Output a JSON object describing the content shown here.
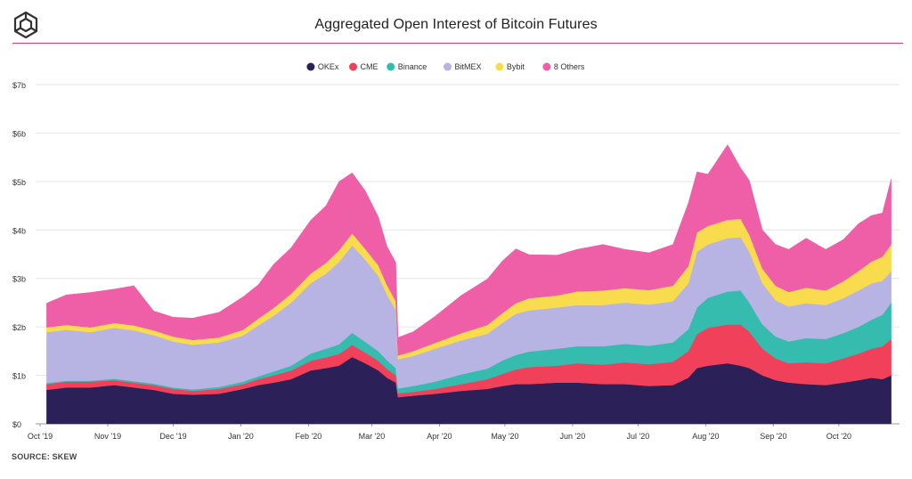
{
  "header": {
    "title": "Aggregated Open Interest of Bitcoin Futures",
    "accent_color": "#e0357f"
  },
  "watermark": "THE BLOCK",
  "footer": {
    "source": "SOURCE: SKEW"
  },
  "chart_data": {
    "type": "area",
    "stacked": true,
    "ylim": [
      0,
      7
    ],
    "y_ticks": [
      0,
      1,
      2,
      3,
      4,
      5,
      6,
      7
    ],
    "y_tick_labels": [
      "$0",
      "$1b",
      "$2b",
      "$3b",
      "$4b",
      "$5b",
      "$6b",
      "$7b"
    ],
    "grid": "horizontal",
    "legend_position": "top-center",
    "x_tick_labels": [
      "Oct '19",
      "Nov '19",
      "Dec '19",
      "Jan '20",
      "Feb '20",
      "Mar '20",
      "Apr '20",
      "May '20",
      "Jun '20",
      "Jul '20",
      "Aug '20",
      "Sep '20",
      "Oct '20"
    ],
    "x_tick_dates": [
      "2019-10-01",
      "2019-11-01",
      "2019-12-01",
      "2020-01-01",
      "2020-02-01",
      "2020-03-01",
      "2020-04-01",
      "2020-05-01",
      "2020-06-01",
      "2020-07-01",
      "2020-08-01",
      "2020-09-01",
      "2020-10-01"
    ],
    "x_dates": [
      "2019-10-04",
      "2019-10-13",
      "2019-10-24",
      "2019-11-04",
      "2019-11-13",
      "2019-11-22",
      "2019-12-01",
      "2019-12-10",
      "2019-12-22",
      "2020-01-02",
      "2020-01-09",
      "2020-01-16",
      "2020-01-24",
      "2020-02-02",
      "2020-02-09",
      "2020-02-15",
      "2020-02-21",
      "2020-02-27",
      "2020-03-04",
      "2020-03-08",
      "2020-03-12",
      "2020-03-13",
      "2020-03-20",
      "2020-03-30",
      "2020-04-11",
      "2020-04-23",
      "2020-04-30",
      "2020-05-06",
      "2020-05-12",
      "2020-05-25",
      "2020-06-03",
      "2020-06-15",
      "2020-06-25",
      "2020-07-06",
      "2020-07-17",
      "2020-07-24",
      "2020-07-28",
      "2020-08-02",
      "2020-08-11",
      "2020-08-17",
      "2020-08-21",
      "2020-08-27",
      "2020-09-02",
      "2020-09-08",
      "2020-09-16",
      "2020-09-25",
      "2020-10-03",
      "2020-10-10",
      "2020-10-16",
      "2020-10-21",
      "2020-10-25"
    ],
    "series": [
      {
        "name": "OKEx",
        "color": "#2b2057",
        "values": [
          0.7,
          0.75,
          0.75,
          0.8,
          0.75,
          0.7,
          0.62,
          0.6,
          0.62,
          0.72,
          0.8,
          0.85,
          0.92,
          1.1,
          1.15,
          1.2,
          1.38,
          1.25,
          1.1,
          0.95,
          0.85,
          0.55,
          0.58,
          0.62,
          0.68,
          0.72,
          0.78,
          0.82,
          0.82,
          0.85,
          0.85,
          0.82,
          0.82,
          0.78,
          0.8,
          0.95,
          1.15,
          1.2,
          1.25,
          1.2,
          1.15,
          1.0,
          0.9,
          0.85,
          0.82,
          0.8,
          0.85,
          0.9,
          0.95,
          0.92,
          1.0
        ]
      },
      {
        "name": "CME",
        "color": "#f0405a",
        "values": [
          0.12,
          0.12,
          0.12,
          0.1,
          0.1,
          0.1,
          0.1,
          0.08,
          0.1,
          0.1,
          0.12,
          0.15,
          0.18,
          0.2,
          0.22,
          0.24,
          0.25,
          0.22,
          0.2,
          0.18,
          0.15,
          0.08,
          0.08,
          0.1,
          0.14,
          0.2,
          0.25,
          0.3,
          0.35,
          0.35,
          0.4,
          0.4,
          0.45,
          0.45,
          0.48,
          0.55,
          0.7,
          0.78,
          0.8,
          0.85,
          0.75,
          0.55,
          0.45,
          0.4,
          0.45,
          0.45,
          0.5,
          0.55,
          0.6,
          0.68,
          0.75
        ]
      },
      {
        "name": "Binance",
        "color": "#35bcae",
        "values": [
          0.02,
          0.02,
          0.02,
          0.03,
          0.03,
          0.03,
          0.03,
          0.03,
          0.04,
          0.05,
          0.06,
          0.08,
          0.1,
          0.15,
          0.18,
          0.2,
          0.25,
          0.22,
          0.2,
          0.18,
          0.15,
          0.1,
          0.12,
          0.15,
          0.2,
          0.22,
          0.28,
          0.3,
          0.32,
          0.35,
          0.35,
          0.38,
          0.38,
          0.38,
          0.4,
          0.45,
          0.55,
          0.62,
          0.68,
          0.7,
          0.6,
          0.5,
          0.45,
          0.45,
          0.5,
          0.5,
          0.52,
          0.55,
          0.6,
          0.65,
          0.75
        ]
      },
      {
        "name": "BitMEX",
        "color": "#b7b3e3",
        "values": [
          1.05,
          1.05,
          1.0,
          1.05,
          1.05,
          1.0,
          0.95,
          0.92,
          0.92,
          0.95,
          1.05,
          1.15,
          1.3,
          1.45,
          1.55,
          1.7,
          1.8,
          1.7,
          1.55,
          1.35,
          1.2,
          0.6,
          0.62,
          0.68,
          0.7,
          0.72,
          0.78,
          0.85,
          0.85,
          0.85,
          0.85,
          0.85,
          0.85,
          0.85,
          0.85,
          0.95,
          1.15,
          1.1,
          1.1,
          1.1,
          1.05,
          0.85,
          0.75,
          0.72,
          0.72,
          0.7,
          0.72,
          0.75,
          0.75,
          0.7,
          0.65
        ]
      },
      {
        "name": "Bybit",
        "color": "#f9dc4e",
        "values": [
          0.1,
          0.1,
          0.1,
          0.1,
          0.1,
          0.1,
          0.1,
          0.1,
          0.1,
          0.12,
          0.14,
          0.16,
          0.18,
          0.2,
          0.22,
          0.24,
          0.25,
          0.22,
          0.22,
          0.2,
          0.18,
          0.08,
          0.1,
          0.12,
          0.15,
          0.18,
          0.2,
          0.22,
          0.25,
          0.25,
          0.28,
          0.3,
          0.3,
          0.3,
          0.32,
          0.35,
          0.4,
          0.38,
          0.38,
          0.38,
          0.35,
          0.3,
          0.3,
          0.3,
          0.32,
          0.3,
          0.35,
          0.4,
          0.45,
          0.5,
          0.55
        ]
      },
      {
        "name": "8 Others",
        "color": "#ee5fa7",
        "values": [
          0.5,
          0.62,
          0.72,
          0.7,
          0.82,
          0.4,
          0.4,
          0.45,
          0.52,
          0.68,
          0.7,
          0.9,
          0.95,
          1.1,
          1.18,
          1.42,
          1.25,
          1.2,
          1.0,
          0.8,
          0.8,
          0.37,
          0.4,
          0.55,
          0.78,
          0.95,
          1.08,
          1.12,
          0.9,
          0.83,
          0.87,
          0.95,
          0.8,
          0.77,
          0.85,
          1.3,
          1.25,
          1.07,
          1.55,
          1.05,
          1.12,
          0.8,
          0.85,
          0.88,
          1.02,
          0.85,
          0.86,
          0.98,
          0.95,
          0.9,
          1.35
        ]
      }
    ]
  }
}
